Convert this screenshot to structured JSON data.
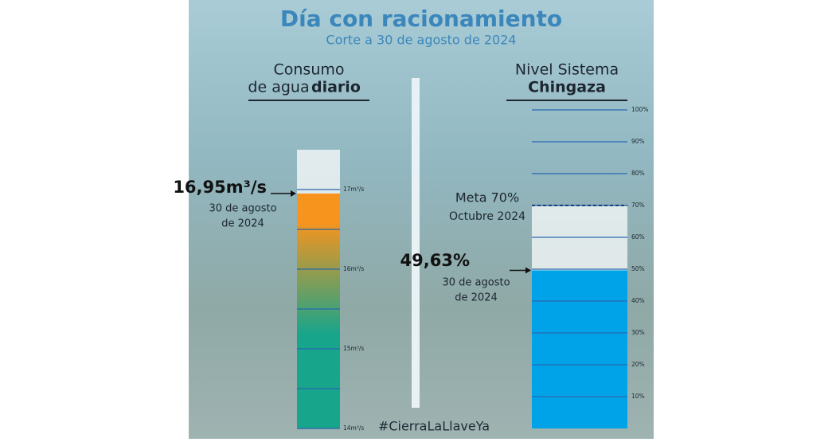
{
  "title": "Día con racionamiento",
  "subtitle": "Corte a 30 de agosto de 2024",
  "hashtag": "#CierraLaLlaveYa",
  "chart_data": [
    {
      "type": "gauge",
      "title_lines": [
        "Consumo",
        "de agua"
      ],
      "title_bold": "diario",
      "value": 16.95,
      "value_label": "16,95m³/s",
      "annotation_lines": [
        "30 de agosto",
        "de 2024"
      ],
      "ylim": [
        14,
        17.5
      ],
      "yticks": [
        {
          "value": 14,
          "label": "14m³/s"
        },
        {
          "value": 15,
          "label": "15m³/s"
        },
        {
          "value": 16,
          "label": "16m³/s"
        },
        {
          "value": 17,
          "label": "17m³/s"
        }
      ],
      "minor_yticks": [
        14.5,
        15.5,
        16.5
      ],
      "gradient": [
        "#f7941d",
        "#17a58c"
      ]
    },
    {
      "type": "gauge",
      "title_lines": [
        "Nivel Sistema"
      ],
      "title_bold": "Chingaza",
      "value": 49.63,
      "value_label": "49,63%",
      "annotation_lines": [
        "30 de agosto",
        "de 2024"
      ],
      "target": {
        "value": 70,
        "label": "Meta 70%",
        "sublabel": "Octubre 2024"
      },
      "ylim": [
        0,
        103.5
      ],
      "yticks": [
        {
          "value": 10,
          "label": "10%"
        },
        {
          "value": 20,
          "label": "20%"
        },
        {
          "value": 30,
          "label": "30%"
        },
        {
          "value": 40,
          "label": "40%"
        },
        {
          "value": 50,
          "label": "50%"
        },
        {
          "value": 60,
          "label": "60%"
        },
        {
          "value": 70,
          "label": "70%"
        },
        {
          "value": 80,
          "label": "80%"
        },
        {
          "value": 90,
          "label": "90%"
        },
        {
          "value": 100,
          "label": "100%"
        }
      ],
      "color": "#00a3e8"
    }
  ]
}
